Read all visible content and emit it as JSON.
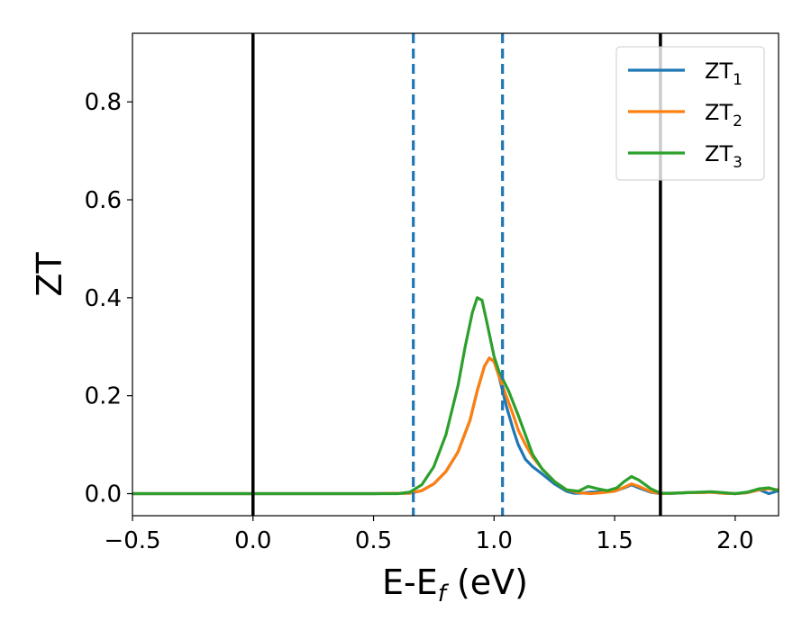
{
  "chart_data": {
    "type": "line",
    "xlabel": "E-E",
    "xlabel_sub": "f",
    "xlabel_unit": " (eV)",
    "ylabel": "ZT",
    "xlim": [
      -0.5,
      2.18
    ],
    "ylim": [
      -0.045,
      0.94
    ],
    "xticks": [
      -0.5,
      0.0,
      0.5,
      1.0,
      1.5,
      2.0
    ],
    "xtick_labels": [
      "−0.5",
      "0.0",
      "0.5",
      "1.0",
      "1.5",
      "2.0"
    ],
    "yticks": [
      0.0,
      0.2,
      0.4,
      0.6,
      0.8
    ],
    "ytick_labels": [
      "0.0",
      "0.2",
      "0.4",
      "0.6",
      "0.8"
    ],
    "grid": false,
    "legend_position": "top-right",
    "vlines_solid": [
      0.0,
      1.69
    ],
    "vlines_dashed": [
      0.665,
      1.035
    ],
    "vline_colors": {
      "solid": "#000000",
      "dashed": "#1f77b4"
    },
    "series": [
      {
        "name": "ZT",
        "name_sub": "1",
        "color": "#1f77b4",
        "x": [
          -0.5,
          0.0,
          0.5,
          0.65,
          0.7,
          0.75,
          0.8,
          0.85,
          0.9,
          0.93,
          0.96,
          0.98,
          1.0,
          1.02,
          1.05,
          1.08,
          1.1,
          1.13,
          1.16,
          1.2,
          1.25,
          1.3,
          1.33,
          1.36,
          1.4,
          1.45,
          1.5,
          1.54,
          1.57,
          1.6,
          1.65,
          1.69,
          1.75,
          1.8,
          1.85,
          1.9,
          1.95,
          2.0,
          2.05,
          2.1,
          2.14,
          2.18
        ],
        "y": [
          0.0,
          0.0,
          0.0,
          0.001,
          0.006,
          0.02,
          0.045,
          0.085,
          0.15,
          0.21,
          0.26,
          0.277,
          0.27,
          0.24,
          0.18,
          0.13,
          0.1,
          0.07,
          0.055,
          0.04,
          0.02,
          0.005,
          0.001,
          0.001,
          0.003,
          0.004,
          0.005,
          0.012,
          0.018,
          0.012,
          0.003,
          0.0,
          0.001,
          0.002,
          0.002,
          0.003,
          0.001,
          0.0,
          0.002,
          0.008,
          0.0,
          0.006
        ]
      },
      {
        "name": "ZT",
        "name_sub": "2",
        "color": "#ff7f0e",
        "x": [
          -0.5,
          0.0,
          0.5,
          0.65,
          0.7,
          0.75,
          0.8,
          0.85,
          0.9,
          0.93,
          0.96,
          0.98,
          1.0,
          1.02,
          1.05,
          1.08,
          1.1,
          1.13,
          1.16,
          1.2,
          1.25,
          1.3,
          1.35,
          1.4,
          1.45,
          1.5,
          1.54,
          1.57,
          1.6,
          1.65,
          1.69,
          1.75,
          1.8,
          1.85,
          1.9,
          1.95,
          2.0,
          2.05,
          2.1,
          2.14,
          2.18
        ],
        "y": [
          0.0,
          0.0,
          0.0,
          0.001,
          0.006,
          0.02,
          0.045,
          0.085,
          0.15,
          0.21,
          0.26,
          0.277,
          0.27,
          0.24,
          0.2,
          0.16,
          0.13,
          0.1,
          0.075,
          0.05,
          0.025,
          0.008,
          0.002,
          0.0,
          0.002,
          0.005,
          0.013,
          0.02,
          0.015,
          0.004,
          0.0,
          0.001,
          0.002,
          0.002,
          0.003,
          0.001,
          0.0,
          0.002,
          0.008,
          0.01,
          0.008
        ]
      },
      {
        "name": "ZT",
        "name_sub": "3",
        "color": "#2ca02c",
        "x": [
          -0.5,
          0.0,
          0.5,
          0.6,
          0.65,
          0.7,
          0.75,
          0.8,
          0.85,
          0.88,
          0.91,
          0.93,
          0.95,
          0.97,
          1.0,
          1.02,
          1.04,
          1.06,
          1.08,
          1.1,
          1.13,
          1.16,
          1.2,
          1.25,
          1.3,
          1.35,
          1.39,
          1.43,
          1.47,
          1.51,
          1.54,
          1.57,
          1.6,
          1.65,
          1.69,
          1.75,
          1.8,
          1.85,
          1.9,
          1.95,
          2.0,
          2.05,
          2.1,
          2.14,
          2.18
        ],
        "y": [
          0.0,
          0.0,
          0.0,
          0.0,
          0.003,
          0.018,
          0.055,
          0.12,
          0.22,
          0.3,
          0.37,
          0.4,
          0.395,
          0.35,
          0.28,
          0.25,
          0.23,
          0.21,
          0.185,
          0.16,
          0.12,
          0.08,
          0.05,
          0.025,
          0.008,
          0.005,
          0.015,
          0.01,
          0.006,
          0.012,
          0.025,
          0.035,
          0.028,
          0.01,
          0.001,
          0.001,
          0.002,
          0.003,
          0.004,
          0.002,
          0.0,
          0.003,
          0.01,
          0.012,
          0.006
        ]
      }
    ]
  }
}
